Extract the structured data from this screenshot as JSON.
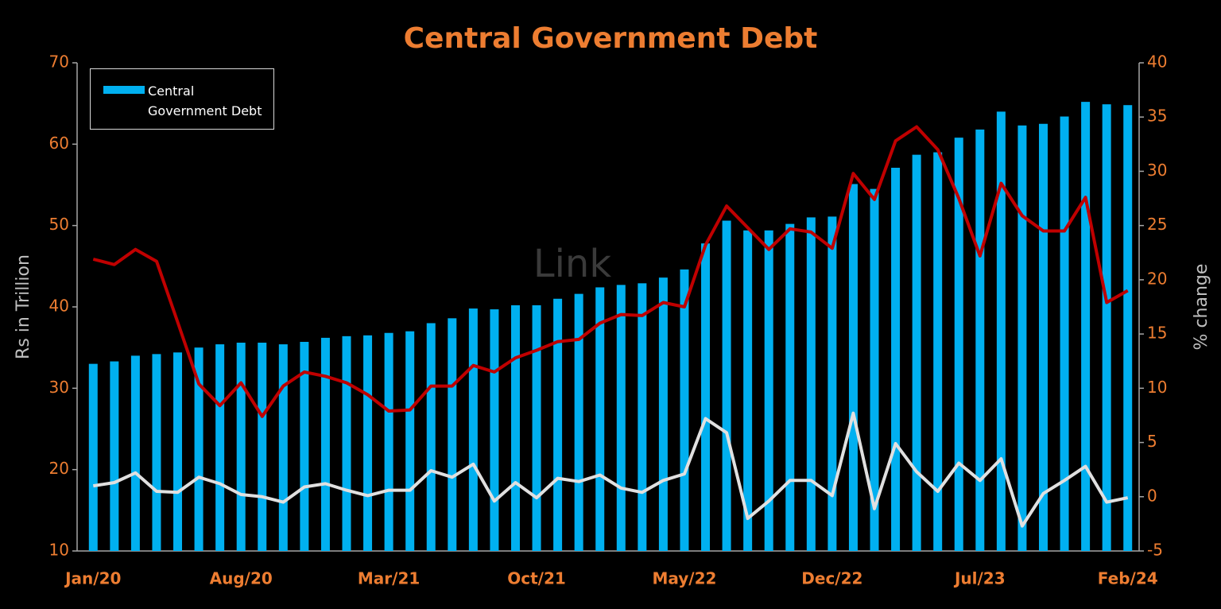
{
  "chart_data": {
    "type": "bar",
    "title": "Central Government Debt",
    "watermark": "Link",
    "y_label": "Rs in Trillion",
    "y2_label": "% change",
    "categories": [
      "Jan/20",
      null,
      null,
      null,
      null,
      null,
      null,
      "Aug/20",
      null,
      null,
      null,
      null,
      null,
      null,
      "Mar/21",
      null,
      null,
      null,
      null,
      null,
      null,
      "Oct/21",
      null,
      null,
      null,
      null,
      null,
      null,
      "May/22",
      null,
      null,
      null,
      null,
      null,
      null,
      "Dec/22",
      null,
      null,
      null,
      null,
      null,
      null,
      "Jul/23",
      null,
      null,
      null,
      null,
      null,
      null,
      "Feb/24"
    ],
    "series": [
      {
        "name": "Central Government Debt",
        "type": "bar",
        "color": "#00b0f0",
        "values": [
          33.0,
          33.3,
          34.0,
          34.2,
          34.4,
          35.0,
          35.4,
          35.6,
          35.6,
          35.4,
          35.7,
          36.2,
          36.4,
          36.5,
          36.8,
          37.0,
          38.0,
          38.6,
          39.8,
          39.7,
          40.2,
          40.2,
          41.0,
          41.6,
          42.4,
          42.7,
          42.9,
          43.6,
          44.6,
          47.8,
          50.6,
          49.4,
          49.4,
          50.2,
          51.0,
          51.1,
          55.1,
          54.5,
          57.1,
          58.7,
          59.0,
          60.8,
          61.8,
          64.0,
          62.3,
          62.5,
          63.4,
          65.2,
          64.9,
          64.8
        ]
      },
      {
        "type": "line",
        "axis": "y2",
        "color": "#c00000",
        "values": [
          21.9,
          21.4,
          22.8,
          21.7,
          16.1,
          10.4,
          8.4,
          10.5,
          7.4,
          10.2,
          11.5,
          11.1,
          10.5,
          9.4,
          7.9,
          8.0,
          10.2,
          10.2,
          12.1,
          11.5,
          12.8,
          13.5,
          14.3,
          14.5,
          16.0,
          16.8,
          16.7,
          17.9,
          17.5,
          23.2,
          26.8,
          24.8,
          22.8,
          24.7,
          24.4,
          22.9,
          29.8,
          27.4,
          32.8,
          34.1,
          32.0,
          27.5,
          22.2,
          28.9,
          25.9,
          24.5,
          24.5,
          27.6,
          17.9,
          19.0
        ]
      },
      {
        "type": "line",
        "axis": "y2",
        "color": "#e0e0e0",
        "values": [
          1.0,
          1.3,
          2.2,
          0.5,
          0.4,
          1.8,
          1.2,
          0.2,
          0.0,
          -0.5,
          0.9,
          1.2,
          0.6,
          0.1,
          0.6,
          0.6,
          2.4,
          1.8,
          3.0,
          -0.4,
          1.3,
          -0.1,
          1.7,
          1.4,
          2.0,
          0.8,
          0.4,
          1.5,
          2.1,
          7.2,
          5.9,
          -2.0,
          -0.4,
          1.5,
          1.5,
          0.1,
          7.7,
          -1.1,
          4.9,
          2.3,
          0.5,
          3.1,
          1.5,
          3.5,
          -2.7,
          0.3,
          1.5,
          2.8,
          -0.5,
          -0.1
        ]
      }
    ],
    "ylim": [
      10,
      70
    ],
    "yticks": [
      10,
      20,
      30,
      40,
      50,
      60,
      70
    ],
    "y2lim": [
      -5,
      40
    ],
    "y2ticks": [
      -5,
      0,
      5,
      10,
      15,
      20,
      25,
      30,
      35,
      40
    ],
    "legend": "top-left"
  }
}
